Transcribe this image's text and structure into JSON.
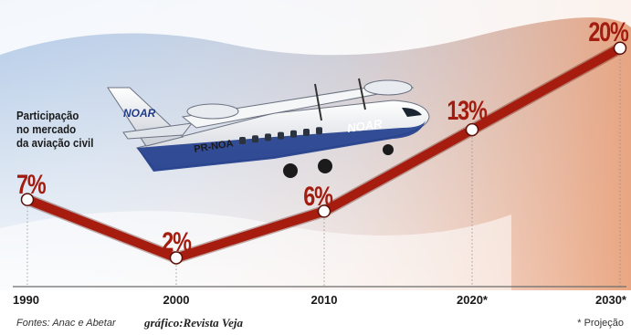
{
  "chart_data": {
    "type": "line",
    "x": [
      "1990",
      "2000",
      "2010",
      "2020*",
      "2030*"
    ],
    "series": [
      {
        "values": [
          7,
          2,
          6,
          13,
          20
        ],
        "labels": [
          "7%",
          "2%",
          "6%",
          "13%",
          "20%"
        ]
      }
    ],
    "ylabel_lines": [
      "Participação",
      "no mercado",
      "da aviação civil"
    ],
    "ylim": [
      0,
      21
    ],
    "grid": false,
    "line_color": "#a61d10",
    "label_color": "#a31c10"
  },
  "aircraft": {
    "registration": "PR-NOA",
    "livery": "NOAR"
  },
  "footer": {
    "source": "Fontes: Anac e Abetar",
    "credit": "gráfico:Revista Veja",
    "note": "* Projeção"
  }
}
